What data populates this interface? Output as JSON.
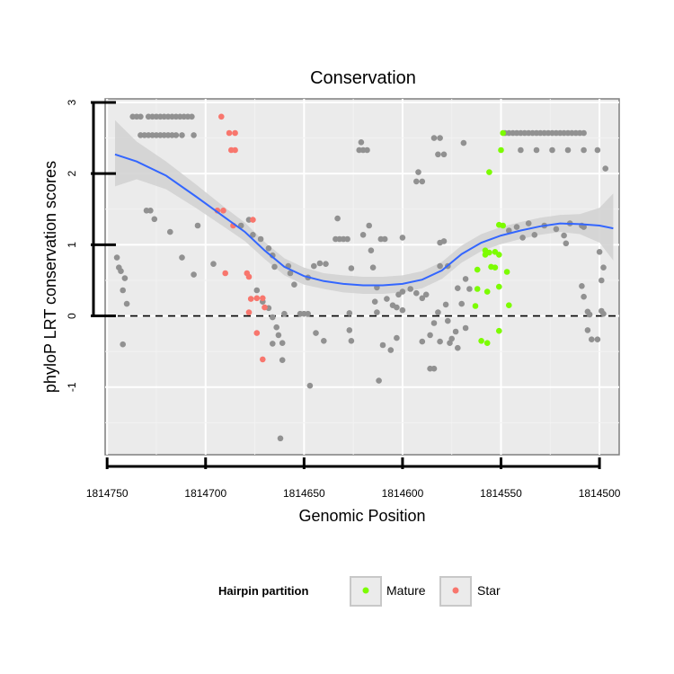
{
  "chart_data": {
    "type": "scatter",
    "title": "Conservation",
    "xlabel": "Genomic Position",
    "ylabel": "phyloP LRT conservation scores",
    "xlim": [
      1814751,
      1814490
    ],
    "x_reversed": true,
    "ylim": [
      -1.95,
      3.05
    ],
    "x_ticks": [
      1814750,
      1814700,
      1814650,
      1814600,
      1814550,
      1814500
    ],
    "x_tick_labels": [
      "1814750",
      "1814700",
      "1814650",
      "1814600",
      "1814550",
      "1814500"
    ],
    "y_ticks": [
      0,
      1,
      2,
      3
    ],
    "y_tick_labels": [
      "0",
      "1",
      "2",
      "3"
    ],
    "y_minor_ticks": [
      -1
    ],
    "y_minor_tick_labels": [
      "-1"
    ],
    "reference_line": {
      "y": 0,
      "style": "dashed"
    },
    "grid": true,
    "colors": {
      "background": "#EBEBEB",
      "panel_fill": "#FFFFFF",
      "grid_major": "#F2F2F2",
      "other": "#919191",
      "mature": "#7CFC00",
      "star": "#F8766D",
      "smooth_line": "#3366FF",
      "ribbon": "#D3D3D3"
    },
    "legend": {
      "title": "Hairpin partition",
      "position": "bottom",
      "entries": [
        {
          "label": "Mature",
          "color": "#7CFC00"
        },
        {
          "label": "Star",
          "color": "#F8766D"
        }
      ]
    },
    "series": [
      {
        "name": "Other",
        "color": "#919191",
        "points": [
          [
            1814745,
            0.82
          ],
          [
            1814744,
            0.68
          ],
          [
            1814743,
            0.63
          ],
          [
            1814741,
            0.53
          ],
          [
            1814742,
            0.36
          ],
          [
            1814740,
            0.17
          ],
          [
            1814742,
            -0.4
          ],
          [
            1814737,
            2.8
          ],
          [
            1814735,
            2.8
          ],
          [
            1814733,
            2.8
          ],
          [
            1814729,
            2.8
          ],
          [
            1814727,
            2.8
          ],
          [
            1814725,
            2.8
          ],
          [
            1814723,
            2.8
          ],
          [
            1814721,
            2.8
          ],
          [
            1814719,
            2.8
          ],
          [
            1814717,
            2.8
          ],
          [
            1814715,
            2.8
          ],
          [
            1814713,
            2.8
          ],
          [
            1814711,
            2.8
          ],
          [
            1814709,
            2.8
          ],
          [
            1814707,
            2.8
          ],
          [
            1814733,
            2.54
          ],
          [
            1814731,
            2.54
          ],
          [
            1814729,
            2.54
          ],
          [
            1814727,
            2.54
          ],
          [
            1814725,
            2.54
          ],
          [
            1814723,
            2.54
          ],
          [
            1814721,
            2.54
          ],
          [
            1814719,
            2.54
          ],
          [
            1814717,
            2.54
          ],
          [
            1814715,
            2.54
          ],
          [
            1814712,
            2.54
          ],
          [
            1814706,
            2.54
          ],
          [
            1814730,
            1.48
          ],
          [
            1814728,
            1.48
          ],
          [
            1814726,
            1.36
          ],
          [
            1814718,
            1.18
          ],
          [
            1814712,
            0.82
          ],
          [
            1814706,
            0.58
          ],
          [
            1814704,
            1.27
          ],
          [
            1814696,
            0.73
          ],
          [
            1814678,
            1.35
          ],
          [
            1814682,
            1.27
          ],
          [
            1814676,
            1.14
          ],
          [
            1814672,
            1.08
          ],
          [
            1814668,
            0.95
          ],
          [
            1814666,
            0.85
          ],
          [
            1814665,
            0.69
          ],
          [
            1814674,
            0.36
          ],
          [
            1814671,
            0.2
          ],
          [
            1814668,
            0.11
          ],
          [
            1814666,
            -0.02
          ],
          [
            1814664,
            -0.16
          ],
          [
            1814663,
            -0.27
          ],
          [
            1814666,
            -0.39
          ],
          [
            1814661,
            -0.38
          ],
          [
            1814660,
            0.03
          ],
          [
            1814661,
            -0.62
          ],
          [
            1814662,
            -1.72
          ],
          [
            1814658,
            0.7
          ],
          [
            1814657,
            0.6
          ],
          [
            1814655,
            0.44
          ],
          [
            1814652,
            0.03
          ],
          [
            1814650,
            0.03
          ],
          [
            1814648,
            0.03
          ],
          [
            1814648,
            0.54
          ],
          [
            1814645,
            0.7
          ],
          [
            1814642,
            0.74
          ],
          [
            1814639,
            0.73
          ],
          [
            1814644,
            -0.24
          ],
          [
            1814640,
            -0.35
          ],
          [
            1814647,
            -0.98
          ],
          [
            1814634,
            1.08
          ],
          [
            1814632,
            1.08
          ],
          [
            1814630,
            1.08
          ],
          [
            1814628,
            1.08
          ],
          [
            1814633,
            1.37
          ],
          [
            1814626,
            0.67
          ],
          [
            1814627,
            0.04
          ],
          [
            1814627,
            -0.2
          ],
          [
            1814626,
            -0.35
          ],
          [
            1814622,
            2.33
          ],
          [
            1814620,
            2.33
          ],
          [
            1814618,
            2.33
          ],
          [
            1814621,
            2.44
          ],
          [
            1814620,
            1.14
          ],
          [
            1814617,
            1.27
          ],
          [
            1814616,
            0.92
          ],
          [
            1814615,
            0.68
          ],
          [
            1814613,
            0.4
          ],
          [
            1814614,
            0.2
          ],
          [
            1814613,
            0.05
          ],
          [
            1814611,
            1.08
          ],
          [
            1814609,
            1.08
          ],
          [
            1814612,
            -0.91
          ],
          [
            1814610,
            -0.41
          ],
          [
            1814606,
            -0.48
          ],
          [
            1814603,
            -0.31
          ],
          [
            1814608,
            0.24
          ],
          [
            1814605,
            0.15
          ],
          [
            1814603,
            0.12
          ],
          [
            1814600,
            0.08
          ],
          [
            1814602,
            0.3
          ],
          [
            1814600,
            0.34
          ],
          [
            1814600,
            1.1
          ],
          [
            1814596,
            0.38
          ],
          [
            1814593,
            0.32
          ],
          [
            1814593,
            1.89
          ],
          [
            1814590,
            1.89
          ],
          [
            1814592,
            2.02
          ],
          [
            1814590,
            0.25
          ],
          [
            1814588,
            0.3
          ],
          [
            1814586,
            -0.74
          ],
          [
            1814584,
            -0.74
          ],
          [
            1814590,
            -0.36
          ],
          [
            1814586,
            -0.27
          ],
          [
            1814584,
            -0.1
          ],
          [
            1814582,
            0.05
          ],
          [
            1814581,
            -0.36
          ],
          [
            1814578,
            0.16
          ],
          [
            1814584,
            2.5
          ],
          [
            1814581,
            2.5
          ],
          [
            1814582,
            2.27
          ],
          [
            1814579,
            2.27
          ],
          [
            1814581,
            1.03
          ],
          [
            1814579,
            1.05
          ],
          [
            1814581,
            0.7
          ],
          [
            1814577,
            0.7
          ],
          [
            1814577,
            -0.07
          ],
          [
            1814575,
            -0.32
          ],
          [
            1814573,
            -0.22
          ],
          [
            1814576,
            -0.38
          ],
          [
            1814572,
            -0.45
          ],
          [
            1814569,
            2.43
          ],
          [
            1814566,
            0.38
          ],
          [
            1814568,
            0.52
          ],
          [
            1814570,
            0.17
          ],
          [
            1814572,
            0.39
          ],
          [
            1814568,
            -0.17
          ],
          [
            1814548,
            2.57
          ],
          [
            1814546,
            2.57
          ],
          [
            1814544,
            2.57
          ],
          [
            1814542,
            2.57
          ],
          [
            1814540,
            2.57
          ],
          [
            1814538,
            2.57
          ],
          [
            1814536,
            2.57
          ],
          [
            1814534,
            2.57
          ],
          [
            1814532,
            2.57
          ],
          [
            1814530,
            2.57
          ],
          [
            1814528,
            2.57
          ],
          [
            1814526,
            2.57
          ],
          [
            1814524,
            2.57
          ],
          [
            1814522,
            2.57
          ],
          [
            1814520,
            2.57
          ],
          [
            1814518,
            2.57
          ],
          [
            1814516,
            2.57
          ],
          [
            1814514,
            2.57
          ],
          [
            1814512,
            2.57
          ],
          [
            1814510,
            2.57
          ],
          [
            1814508,
            2.57
          ],
          [
            1814540,
            2.33
          ],
          [
            1814532,
            2.33
          ],
          [
            1814524,
            2.33
          ],
          [
            1814516,
            2.33
          ],
          [
            1814508,
            2.33
          ],
          [
            1814546,
            1.2
          ],
          [
            1814542,
            1.25
          ],
          [
            1814539,
            1.1
          ],
          [
            1814536,
            1.3
          ],
          [
            1814533,
            1.14
          ],
          [
            1814528,
            1.27
          ],
          [
            1814522,
            1.22
          ],
          [
            1814518,
            1.13
          ],
          [
            1814517,
            1.02
          ],
          [
            1814515,
            1.3
          ],
          [
            1814509,
            1.27
          ],
          [
            1814508,
            1.25
          ],
          [
            1814509,
            0.42
          ],
          [
            1814508,
            0.27
          ],
          [
            1814506,
            0.06
          ],
          [
            1814505,
            0.02
          ],
          [
            1814506,
            -0.2
          ],
          [
            1814504,
            -0.33
          ],
          [
            1814501,
            -0.33
          ],
          [
            1814501,
            2.33
          ],
          [
            1814497,
            2.07
          ],
          [
            1814500,
            0.9
          ],
          [
            1814498,
            0.68
          ],
          [
            1814499,
            0.5
          ],
          [
            1814499,
            0.07
          ],
          [
            1814498,
            0.03
          ]
        ]
      },
      {
        "name": "Mature",
        "color": "#7CFC00",
        "points": [
          [
            1814549,
            2.57
          ],
          [
            1814550,
            2.33
          ],
          [
            1814556,
            2.02
          ],
          [
            1814551,
            1.28
          ],
          [
            1814549,
            1.27
          ],
          [
            1814558,
            0.92
          ],
          [
            1814556,
            0.89
          ],
          [
            1814553,
            0.9
          ],
          [
            1814551,
            0.86
          ],
          [
            1814547,
            0.62
          ],
          [
            1814562,
            0.65
          ],
          [
            1814558,
            0.86
          ],
          [
            1814562,
            0.38
          ],
          [
            1814557,
            0.34
          ],
          [
            1814551,
            0.41
          ],
          [
            1814563,
            0.14
          ],
          [
            1814546,
            0.15
          ],
          [
            1814555,
            0.69
          ],
          [
            1814553,
            0.68
          ],
          [
            1814551,
            -0.21
          ],
          [
            1814560,
            -0.35
          ],
          [
            1814557,
            -0.38
          ]
        ]
      },
      {
        "name": "Star",
        "color": "#F8766D",
        "points": [
          [
            1814692,
            2.8
          ],
          [
            1814688,
            2.57
          ],
          [
            1814685,
            2.57
          ],
          [
            1814687,
            2.33
          ],
          [
            1814685,
            2.33
          ],
          [
            1814694,
            1.48
          ],
          [
            1814691,
            1.48
          ],
          [
            1814686,
            1.27
          ],
          [
            1814676,
            1.35
          ],
          [
            1814690,
            0.6
          ],
          [
            1814679,
            0.6
          ],
          [
            1814678,
            0.55
          ],
          [
            1814677,
            0.24
          ],
          [
            1814674,
            0.25
          ],
          [
            1814671,
            0.25
          ],
          [
            1814670,
            0.12
          ],
          [
            1814678,
            0.05
          ],
          [
            1814674,
            -0.24
          ],
          [
            1814671,
            -0.61
          ]
        ]
      }
    ],
    "smooth_curve": [
      [
        1814746,
        2.27
      ],
      [
        1814735,
        2.17
      ],
      [
        1814720,
        1.97
      ],
      [
        1814705,
        1.68
      ],
      [
        1814690,
        1.38
      ],
      [
        1814680,
        1.18
      ],
      [
        1814670,
        0.92
      ],
      [
        1814660,
        0.69
      ],
      [
        1814650,
        0.56
      ],
      [
        1814640,
        0.49
      ],
      [
        1814630,
        0.45
      ],
      [
        1814620,
        0.43
      ],
      [
        1814610,
        0.43
      ],
      [
        1814600,
        0.45
      ],
      [
        1814590,
        0.51
      ],
      [
        1814580,
        0.64
      ],
      [
        1814570,
        0.87
      ],
      [
        1814560,
        1.03
      ],
      [
        1814550,
        1.13
      ],
      [
        1814540,
        1.2
      ],
      [
        1814530,
        1.26
      ],
      [
        1814520,
        1.3
      ],
      [
        1814510,
        1.29
      ],
      [
        1814500,
        1.27
      ],
      [
        1814493,
        1.23
      ]
    ],
    "smooth_ribbon_upper": [
      [
        1814746,
        2.75
      ],
      [
        1814735,
        2.45
      ],
      [
        1814720,
        2.17
      ],
      [
        1814705,
        1.85
      ],
      [
        1814690,
        1.52
      ],
      [
        1814680,
        1.31
      ],
      [
        1814670,
        1.04
      ],
      [
        1814660,
        0.81
      ],
      [
        1814650,
        0.68
      ],
      [
        1814640,
        0.6
      ],
      [
        1814630,
        0.57
      ],
      [
        1814620,
        0.55
      ],
      [
        1814610,
        0.55
      ],
      [
        1814600,
        0.57
      ],
      [
        1814590,
        0.63
      ],
      [
        1814580,
        0.76
      ],
      [
        1814570,
        0.99
      ],
      [
        1814560,
        1.15
      ],
      [
        1814550,
        1.25
      ],
      [
        1814540,
        1.32
      ],
      [
        1814530,
        1.38
      ],
      [
        1814520,
        1.42
      ],
      [
        1814510,
        1.43
      ],
      [
        1814500,
        1.52
      ],
      [
        1814493,
        1.72
      ]
    ],
    "smooth_ribbon_lower": [
      [
        1814746,
        1.82
      ],
      [
        1814735,
        1.92
      ],
      [
        1814720,
        1.78
      ],
      [
        1814705,
        1.52
      ],
      [
        1814690,
        1.24
      ],
      [
        1814680,
        1.05
      ],
      [
        1814670,
        0.8
      ],
      [
        1814660,
        0.57
      ],
      [
        1814650,
        0.44
      ],
      [
        1814640,
        0.38
      ],
      [
        1814630,
        0.33
      ],
      [
        1814620,
        0.31
      ],
      [
        1814610,
        0.31
      ],
      [
        1814600,
        0.33
      ],
      [
        1814590,
        0.39
      ],
      [
        1814580,
        0.52
      ],
      [
        1814570,
        0.75
      ],
      [
        1814560,
        0.91
      ],
      [
        1814550,
        1.01
      ],
      [
        1814540,
        1.08
      ],
      [
        1814530,
        1.14
      ],
      [
        1814520,
        1.18
      ],
      [
        1814510,
        1.15
      ],
      [
        1814500,
        1.03
      ],
      [
        1814493,
        0.78
      ]
    ]
  }
}
